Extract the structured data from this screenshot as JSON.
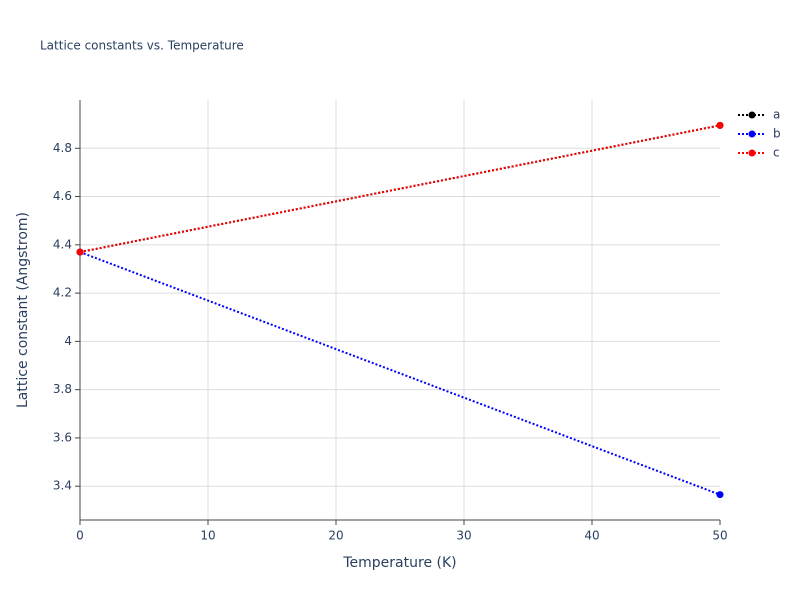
{
  "chart_data": {
    "type": "line",
    "title": "Lattice constants vs. Temperature",
    "x_label": "Temperature (K)",
    "y_label": "Lattice constant (Angstrom)",
    "x": [
      0,
      50
    ],
    "series": [
      {
        "name": "a",
        "color": "#000000",
        "values": [
          4.37,
          4.895
        ]
      },
      {
        "name": "b",
        "color": "#0000ff",
        "values": [
          4.37,
          3.365
        ]
      },
      {
        "name": "c",
        "color": "#ff0000",
        "values": [
          4.37,
          4.895
        ]
      }
    ],
    "xlim": [
      0,
      50
    ],
    "xticks": [
      0,
      10,
      20,
      30,
      40,
      50
    ],
    "ylim": [
      3.26,
      5.0
    ],
    "yticks": [
      3.4,
      3.6,
      3.8,
      4,
      4.2,
      4.4,
      4.6,
      4.8
    ],
    "grid": true,
    "legend": "top-right"
  }
}
